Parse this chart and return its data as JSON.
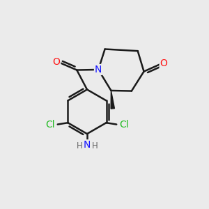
{
  "background_color": "#ebebeb",
  "bond_color": "#1a1a1a",
  "bond_width": 1.8,
  "atom_colors": {
    "N": "#1414ff",
    "O": "#ff1414",
    "Cl": "#22bb22",
    "H": "#666666"
  },
  "font_size_atom": 10,
  "font_size_h": 8.5,
  "figsize": [
    3.0,
    3.0
  ],
  "dpi": 100
}
